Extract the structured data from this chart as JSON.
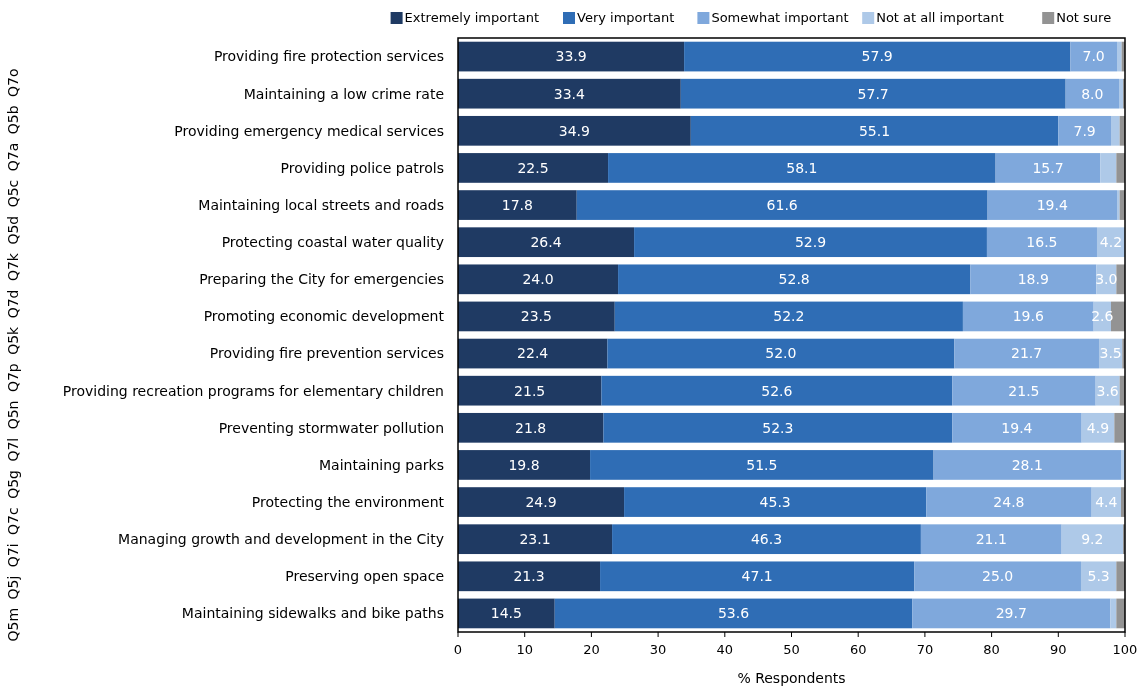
{
  "chart_data": {
    "type": "bar",
    "orientation": "horizontal",
    "stacked": true,
    "xlabel": "% Respondents",
    "categories": [
      "Providing fire protection services",
      "Maintaining a low crime rate",
      "Providing emergency medical services",
      "Providing police patrols",
      "Maintaining local streets and roads",
      "Protecting coastal water quality",
      "Preparing the City for emergencies",
      "Promoting economic development",
      "Providing fire prevention services",
      "Providing recreation programs for elementary children",
      "Preventing stormwater pollution",
      "Maintaining parks",
      "Protecting the environment",
      "Managing growth and development in the City",
      "Preserving open space",
      "Maintaining sidewalks and bike paths"
    ],
    "series": [
      {
        "name": "Extremely important",
        "color": "#1f3a63",
        "values": [
          33.9,
          33.4,
          34.9,
          22.5,
          17.8,
          26.4,
          24.0,
          23.5,
          22.4,
          21.5,
          21.8,
          19.8,
          24.9,
          23.1,
          21.3,
          14.5
        ],
        "value_labels": [
          "33.9",
          "33.4",
          "34.9",
          "22.5",
          "17.8",
          "26.4",
          "24.0",
          "23.5",
          "22.4",
          "21.5",
          "21.8",
          "19.8",
          "24.9",
          "23.1",
          "21.3",
          "14.5"
        ]
      },
      {
        "name": "Very important",
        "color": "#2f6db5",
        "values": [
          57.9,
          57.7,
          55.1,
          58.1,
          61.6,
          52.9,
          52.8,
          52.2,
          52.0,
          52.6,
          52.3,
          51.5,
          45.3,
          46.3,
          47.1,
          53.6
        ],
        "value_labels": [
          "57.9",
          "57.7",
          "55.1",
          "58.1",
          "61.6",
          "52.9",
          "52.8",
          "52.2",
          "52.0",
          "52.6",
          "52.3",
          "51.5",
          "45.3",
          "46.3",
          "47.1",
          "53.6"
        ]
      },
      {
        "name": "Somewhat important",
        "color": "#7fa8dc",
        "values": [
          7.0,
          8.0,
          7.9,
          15.7,
          19.4,
          16.5,
          18.9,
          19.6,
          21.7,
          21.5,
          19.4,
          28.1,
          24.8,
          21.1,
          25.0,
          29.7
        ],
        "value_labels": [
          "7.0",
          "8.0",
          "7.9",
          "15.7",
          "19.4",
          "16.5",
          "18.9",
          "19.6",
          "21.7",
          "21.5",
          "19.4",
          "28.1",
          "24.8",
          "21.1",
          "25.0",
          "29.7"
        ]
      },
      {
        "name": "Not at all important",
        "color": "#aec9e8",
        "values": [
          0.7,
          0.6,
          1.3,
          2.4,
          0.4,
          4.2,
          3.0,
          2.6,
          3.5,
          3.6,
          4.9,
          0.6,
          4.4,
          9.2,
          5.3,
          0.9
        ],
        "value_labels": [
          null,
          null,
          null,
          null,
          null,
          "4.2",
          "3.0",
          "2.6",
          "3.5",
          "3.6",
          "4.9",
          null,
          "4.4",
          "9.2",
          "5.3",
          null
        ]
      },
      {
        "name": "Not sure",
        "color": "#939393",
        "values": [
          0.5,
          0.3,
          0.8,
          1.3,
          0.8,
          0,
          1.3,
          2.1,
          0.4,
          0.8,
          1.6,
          0,
          0.6,
          0.3,
          1.3,
          1.3
        ],
        "value_labels": [
          null,
          null,
          null,
          null,
          null,
          null,
          null,
          null,
          null,
          null,
          null,
          null,
          null,
          null,
          null,
          null
        ]
      }
    ],
    "xlim": [
      0,
      100
    ],
    "xticks": [
      0,
      10,
      20,
      30,
      40,
      50,
      60,
      70,
      80,
      90,
      100
    ],
    "legend": "top",
    "annotations": [
      "Q5m Q5j Q7i Q7c Q5g Q7l Q5n Q7p Q5k Q7d Q7k Q5d Q5c Q7a Q5b Q7o"
    ]
  }
}
